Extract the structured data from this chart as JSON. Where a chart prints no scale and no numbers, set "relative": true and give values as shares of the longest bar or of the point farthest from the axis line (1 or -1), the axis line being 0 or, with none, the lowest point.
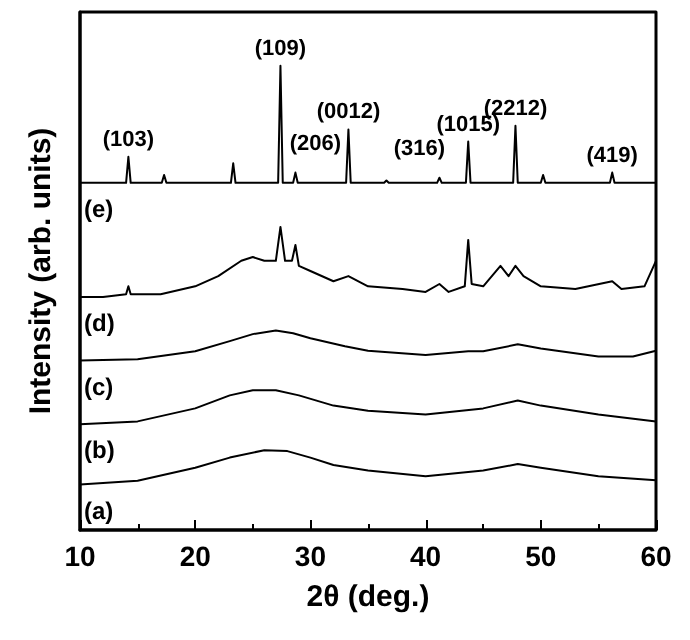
{
  "chart_data": {
    "type": "line",
    "xlabel": "2θ (deg.)",
    "ylabel": "Intensity (arb. units)",
    "relative": true,
    "xlim": [
      10,
      60
    ],
    "xticks": [
      10,
      20,
      30,
      40,
      50,
      60
    ],
    "tick_labels": "x",
    "grid": false,
    "legend": false,
    "marker": "none",
    "line_style": "solid",
    "series": [
      {
        "name": "(a)",
        "color": "#000000",
        "x": [
          10,
          15,
          20,
          23,
          26,
          28,
          30,
          32,
          35,
          40,
          45,
          48,
          50,
          55,
          60
        ],
        "values": [
          0.098,
          0.106,
          0.134,
          0.156,
          0.172,
          0.17,
          0.156,
          0.14,
          0.128,
          0.116,
          0.128,
          0.142,
          0.134,
          0.116,
          0.107
        ]
      },
      {
        "name": "(b)",
        "color": "#000000",
        "x": [
          10,
          15,
          20,
          23,
          25,
          27,
          29,
          32,
          35,
          40,
          45,
          48,
          50,
          55,
          60
        ],
        "values": [
          0.228,
          0.234,
          0.262,
          0.29,
          0.301,
          0.301,
          0.29,
          0.268,
          0.257,
          0.249,
          0.262,
          0.279,
          0.268,
          0.249,
          0.234
        ]
      },
      {
        "name": "(c)",
        "color": "#000000",
        "x": [
          10,
          15,
          20,
          23,
          25,
          27,
          28.5,
          30,
          33,
          35,
          40,
          43.7,
          45,
          48,
          50,
          55,
          58,
          60
        ],
        "values": [
          0.365,
          0.368,
          0.385,
          0.407,
          0.422,
          0.43,
          0.424,
          0.413,
          0.396,
          0.386,
          0.377,
          0.385,
          0.385,
          0.4,
          0.391,
          0.374,
          0.374,
          0.386
        ]
      },
      {
        "name": "(d)",
        "color": "#000000",
        "x": [
          10,
          12,
          14,
          14.2,
          14.4,
          17,
          20,
          22,
          24,
          25,
          26,
          27,
          27.4,
          27.8,
          28.4,
          28.7,
          29,
          30,
          32,
          33.3,
          35,
          38,
          40,
          41.2,
          42,
          43.4,
          43.7,
          44,
          45,
          46.5,
          47.2,
          47.8,
          48.5,
          50,
          53,
          56.2,
          57,
          59,
          60
        ],
        "values": [
          0.502,
          0.502,
          0.508,
          0.525,
          0.508,
          0.508,
          0.525,
          0.547,
          0.58,
          0.588,
          0.58,
          0.58,
          0.653,
          0.58,
          0.58,
          0.614,
          0.569,
          0.558,
          0.536,
          0.547,
          0.525,
          0.519,
          0.513,
          0.53,
          0.513,
          0.525,
          0.625,
          0.53,
          0.525,
          0.569,
          0.547,
          0.569,
          0.547,
          0.525,
          0.519,
          0.536,
          0.519,
          0.525,
          0.58
        ]
      },
      {
        "name": "(e)",
        "color": "#000000",
        "x": [
          10,
          14,
          14.2,
          14.4,
          17.1,
          17.3,
          17.5,
          23.1,
          23.3,
          23.5,
          27.2,
          27.4,
          27.6,
          28.5,
          28.7,
          28.9,
          33.1,
          33.3,
          33.5,
          36.4,
          36.6,
          36.8,
          41,
          41.2,
          41.4,
          43.5,
          43.7,
          43.9,
          47.6,
          47.8,
          48,
          50,
          50.2,
          50.4,
          56,
          56.2,
          56.4,
          60
        ],
        "values": [
          0.748,
          0.748,
          0.804,
          0.748,
          0.748,
          0.765,
          0.748,
          0.748,
          0.79,
          0.748,
          0.748,
          1,
          0.748,
          0.748,
          0.77,
          0.748,
          0.748,
          0.863,
          0.748,
          0.748,
          0.753,
          0.748,
          0.748,
          0.759,
          0.748,
          0.748,
          0.837,
          0.748,
          0.748,
          0.871,
          0.748,
          0.748,
          0.765,
          0.748,
          0.748,
          0.77,
          0.748,
          0.748
        ]
      }
    ],
    "annotations": [
      {
        "text": "(103)",
        "x": 14.2,
        "y": 0.804
      },
      {
        "text": "(109)",
        "x": 27.4,
        "y": 1
      },
      {
        "text": "(206)",
        "x": 28.7,
        "y": 0.77
      },
      {
        "text": "(0012)",
        "x": 33.3,
        "y": 0.863
      },
      {
        "text": "(316)",
        "x": 41.2,
        "y": 0.759
      },
      {
        "text": "(1015)",
        "x": 43.7,
        "y": 0.837
      },
      {
        "text": "(2212)",
        "x": 47.8,
        "y": 0.871
      },
      {
        "text": "(419)",
        "x": 56.2,
        "y": 0.77
      }
    ]
  }
}
